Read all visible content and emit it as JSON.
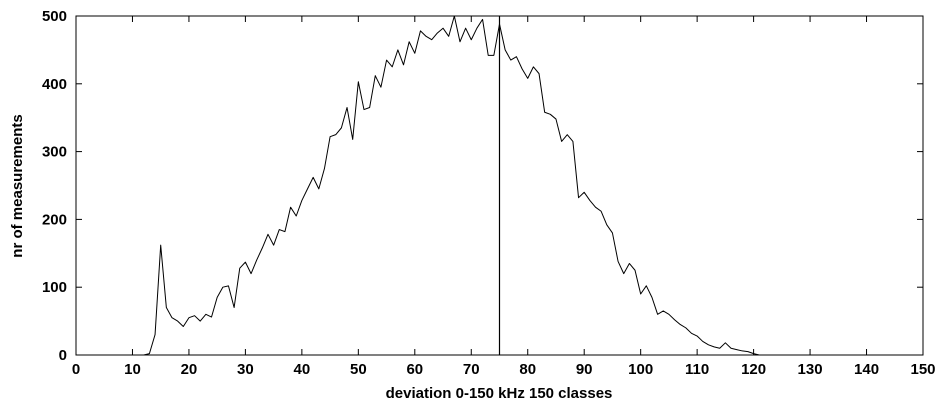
{
  "chart_data": {
    "type": "line",
    "title": "",
    "xlabel": "deviation 0-150 kHz 150 classes",
    "ylabel": "nr of measurements",
    "xlim": [
      0,
      150
    ],
    "ylim": [
      0,
      500
    ],
    "xticks": [
      0,
      10,
      20,
      30,
      40,
      50,
      60,
      70,
      80,
      90,
      100,
      110,
      120,
      130,
      140,
      150
    ],
    "yticks": [
      0,
      100,
      200,
      300,
      400,
      500
    ],
    "grid": false,
    "vertical_line_x": 75,
    "series": [
      {
        "x": [
          0,
          1,
          2,
          3,
          4,
          5,
          6,
          7,
          8,
          9,
          10,
          11,
          12,
          13,
          14,
          15,
          16,
          17,
          18,
          19,
          20,
          21,
          22,
          23,
          24,
          25,
          26,
          27,
          28,
          29,
          30,
          31,
          32,
          33,
          34,
          35,
          36,
          37,
          38,
          39,
          40,
          41,
          42,
          43,
          44,
          45,
          46,
          47,
          48,
          49,
          50,
          51,
          52,
          53,
          54,
          55,
          56,
          57,
          58,
          59,
          60,
          61,
          62,
          63,
          64,
          65,
          66,
          67,
          68,
          69,
          70,
          71,
          72,
          73,
          74,
          75,
          76,
          77,
          78,
          79,
          80,
          81,
          82,
          83,
          84,
          85,
          86,
          87,
          88,
          89,
          90,
          91,
          92,
          93,
          94,
          95,
          96,
          97,
          98,
          99,
          100,
          101,
          102,
          103,
          104,
          105,
          106,
          107,
          108,
          109,
          110,
          111,
          112,
          113,
          114,
          115,
          116,
          117,
          118,
          119,
          120,
          121,
          122,
          123,
          124,
          125,
          126,
          127,
          128,
          129,
          130,
          131,
          132,
          133,
          134,
          135,
          136,
          137,
          138,
          139,
          140,
          141,
          142,
          143,
          144,
          145,
          146,
          147,
          148,
          149,
          150
        ],
        "y": [
          0,
          0,
          0,
          0,
          0,
          0,
          0,
          0,
          0,
          0,
          0,
          0,
          0,
          2,
          30,
          162,
          70,
          55,
          50,
          42,
          55,
          58,
          50,
          60,
          56,
          85,
          100,
          102,
          70,
          128,
          137,
          120,
          140,
          158,
          178,
          162,
          185,
          182,
          218,
          205,
          228,
          245,
          262,
          245,
          275,
          322,
          325,
          335,
          365,
          318,
          403,
          362,
          365,
          412,
          395,
          435,
          425,
          450,
          428,
          462,
          445,
          478,
          470,
          465,
          475,
          482,
          470,
          500,
          462,
          482,
          465,
          482,
          495,
          442,
          442,
          488,
          450,
          435,
          440,
          422,
          408,
          425,
          415,
          358,
          355,
          348,
          315,
          325,
          315,
          232,
          240,
          228,
          218,
          212,
          192,
          180,
          138,
          120,
          135,
          125,
          90,
          102,
          85,
          60,
          65,
          60,
          52,
          45,
          40,
          32,
          28,
          20,
          15,
          12,
          10,
          18,
          10,
          8,
          6,
          5,
          2,
          0,
          0,
          0,
          0,
          0,
          0,
          0,
          0,
          0,
          0,
          0,
          0,
          0,
          0,
          0,
          0,
          0,
          0,
          0,
          0,
          0,
          0,
          0,
          0,
          0,
          0,
          0,
          0,
          0,
          0
        ]
      }
    ]
  }
}
